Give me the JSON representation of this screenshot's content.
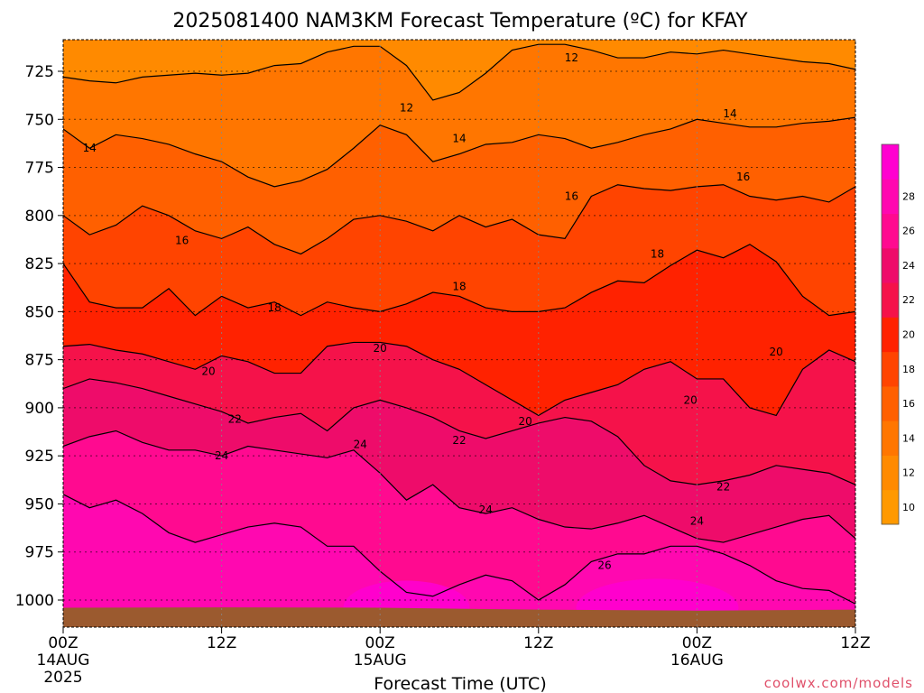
{
  "chart_data": {
    "type": "heatmap",
    "title": "2025081400 NAM3KM Forecast Temperature (ºC) for KFAY",
    "xlabel": "Forecast Time (UTC)",
    "ylabel": "",
    "units": "ºC",
    "x_ticks": [
      {
        "hour": 0,
        "label": "00Z",
        "sub1": "14AUG",
        "sub2": "2025"
      },
      {
        "hour": 12,
        "label": "12Z",
        "sub1": "",
        "sub2": ""
      },
      {
        "hour": 24,
        "label": "00Z",
        "sub1": "15AUG",
        "sub2": ""
      },
      {
        "hour": 36,
        "label": "12Z",
        "sub1": "",
        "sub2": ""
      },
      {
        "hour": 48,
        "label": "00Z",
        "sub1": "16AUG",
        "sub2": ""
      },
      {
        "hour": 60,
        "label": "12Z",
        "sub1": "",
        "sub2": ""
      }
    ],
    "xlim": [
      0,
      60
    ],
    "y_ticks": [
      725,
      750,
      775,
      800,
      825,
      850,
      875,
      900,
      925,
      950,
      975,
      1000
    ],
    "ylim": [
      1013,
      710
    ],
    "colorbar_levels": [
      10,
      12,
      14,
      16,
      18,
      20,
      22,
      24,
      26,
      28
    ],
    "contour_labels": [
      {
        "text": "12",
        "hour": 38.5,
        "p": 718
      },
      {
        "text": "12",
        "hour": 26,
        "p": 744
      },
      {
        "text": "14",
        "hour": 2,
        "p": 765
      },
      {
        "text": "14",
        "hour": 30,
        "p": 760
      },
      {
        "text": "14",
        "hour": 50.5,
        "p": 747
      },
      {
        "text": "16",
        "hour": 9,
        "p": 813
      },
      {
        "text": "16",
        "hour": 38.5,
        "p": 790
      },
      {
        "text": "16",
        "hour": 51.5,
        "p": 780
      },
      {
        "text": "18",
        "hour": 16,
        "p": 848
      },
      {
        "text": "18",
        "hour": 30,
        "p": 837
      },
      {
        "text": "18",
        "hour": 45,
        "p": 820
      },
      {
        "text": "20",
        "hour": 11,
        "p": 881
      },
      {
        "text": "20",
        "hour": 24,
        "p": 869
      },
      {
        "text": "20",
        "hour": 35,
        "p": 907
      },
      {
        "text": "20",
        "hour": 47.5,
        "p": 896
      },
      {
        "text": "20",
        "hour": 54,
        "p": 871
      },
      {
        "text": "22",
        "hour": 13,
        "p": 906
      },
      {
        "text": "22",
        "hour": 30,
        "p": 917
      },
      {
        "text": "22",
        "hour": 50,
        "p": 941
      },
      {
        "text": "24",
        "hour": 12,
        "p": 925
      },
      {
        "text": "24",
        "hour": 22.5,
        "p": 919
      },
      {
        "text": "24",
        "hour": 32,
        "p": 953
      },
      {
        "text": "24",
        "hour": 48,
        "p": 959
      },
      {
        "text": "26",
        "hour": 41,
        "p": 982
      }
    ],
    "isotherms": [
      {
        "level": 12,
        "hour": [
          0,
          2,
          4,
          6,
          8,
          10,
          12,
          14,
          16,
          18,
          20,
          22,
          24,
          26,
          28,
          30,
          32,
          34,
          36,
          38,
          40,
          42,
          44,
          46,
          48,
          50,
          52,
          54,
          56,
          58,
          60
        ],
        "p": [
          728,
          730,
          731,
          728,
          727,
          726,
          727,
          726,
          722,
          721,
          715,
          712,
          712,
          722,
          740,
          736,
          726,
          714,
          711,
          711,
          714,
          718,
          718,
          715,
          716,
          714,
          716,
          718,
          720,
          721,
          724
        ]
      },
      {
        "level": 14,
        "hour": [
          0,
          2,
          4,
          6,
          8,
          10,
          12,
          14,
          16,
          18,
          20,
          22,
          24,
          26,
          28,
          30,
          32,
          34,
          36,
          38,
          40,
          42,
          44,
          46,
          48,
          50,
          52,
          54,
          56,
          58,
          60
        ],
        "p": [
          755,
          765,
          758,
          760,
          763,
          768,
          772,
          780,
          785,
          782,
          776,
          765,
          753,
          758,
          772,
          768,
          763,
          762,
          758,
          760,
          765,
          762,
          758,
          755,
          750,
          752,
          754,
          754,
          752,
          751,
          749
        ]
      },
      {
        "level": 16,
        "hour": [
          0,
          2,
          4,
          6,
          8,
          10,
          12,
          14,
          16,
          18,
          20,
          22,
          24,
          26,
          28,
          30,
          32,
          34,
          36,
          38,
          40,
          42,
          44,
          46,
          48,
          50,
          52,
          54,
          56,
          58,
          60
        ],
        "p": [
          800,
          810,
          805,
          795,
          800,
          808,
          812,
          806,
          815,
          820,
          812,
          802,
          800,
          803,
          808,
          800,
          806,
          802,
          810,
          812,
          790,
          784,
          786,
          787,
          785,
          784,
          790,
          792,
          790,
          793,
          785
        ]
      },
      {
        "level": 18,
        "hour": [
          0,
          2,
          4,
          6,
          8,
          10,
          12,
          14,
          16,
          18,
          20,
          22,
          24,
          26,
          28,
          30,
          32,
          34,
          36,
          38,
          40,
          42,
          44,
          46,
          48,
          50,
          52,
          54,
          56,
          58,
          60
        ],
        "p": [
          825,
          845,
          848,
          848,
          838,
          852,
          842,
          848,
          845,
          852,
          845,
          848,
          850,
          846,
          840,
          842,
          848,
          850,
          850,
          848,
          840,
          834,
          835,
          826,
          818,
          822,
          815,
          824,
          842,
          852,
          850
        ]
      },
      {
        "level": 20,
        "hour": [
          0,
          2,
          4,
          6,
          8,
          10,
          12,
          14,
          16,
          18,
          20,
          22,
          24,
          26,
          28,
          30,
          32,
          34,
          36,
          38,
          40,
          42,
          44,
          46,
          48,
          50,
          52,
          54,
          56,
          58,
          60
        ],
        "p": [
          868,
          867,
          870,
          872,
          876,
          880,
          873,
          876,
          882,
          882,
          868,
          866,
          866,
          868,
          875,
          880,
          888,
          896,
          904,
          896,
          892,
          888,
          880,
          876,
          885,
          885,
          900,
          904,
          880,
          870,
          876
        ]
      },
      {
        "level": 22,
        "hour": [
          0,
          2,
          4,
          6,
          8,
          10,
          12,
          14,
          16,
          18,
          20,
          22,
          24,
          26,
          28,
          30,
          32,
          34,
          36,
          38,
          40,
          42,
          44,
          46,
          48,
          50,
          52,
          54,
          56,
          58,
          60
        ],
        "p": [
          890,
          885,
          887,
          890,
          894,
          898,
          902,
          908,
          905,
          903,
          912,
          900,
          896,
          900,
          905,
          912,
          916,
          912,
          908,
          905,
          907,
          915,
          930,
          938,
          940,
          938,
          935,
          930,
          932,
          934,
          940
        ]
      },
      {
        "level": 24,
        "hour": [
          0,
          2,
          4,
          6,
          8,
          10,
          12,
          14,
          16,
          18,
          20,
          22,
          24,
          26,
          28,
          30,
          32,
          34,
          36,
          38,
          40,
          42,
          44,
          46,
          48,
          50,
          52,
          54,
          56,
          58,
          60
        ],
        "p": [
          920,
          915,
          912,
          918,
          922,
          922,
          925,
          920,
          922,
          924,
          926,
          922,
          934,
          948,
          940,
          952,
          955,
          952,
          958,
          962,
          963,
          960,
          956,
          962,
          968,
          970,
          966,
          962,
          958,
          956,
          968
        ]
      },
      {
        "level": 26,
        "hour": [
          0,
          2,
          4,
          6,
          8,
          10,
          12,
          14,
          16,
          18,
          20,
          22,
          24,
          26,
          28,
          30,
          32,
          34,
          36,
          38,
          40,
          42,
          44,
          46,
          48,
          50,
          52,
          54,
          56,
          58,
          60
        ],
        "p": [
          945,
          952,
          948,
          955,
          965,
          970,
          966,
          962,
          960,
          962,
          972,
          972,
          985,
          996,
          998,
          992,
          987,
          990,
          1000,
          992,
          980,
          976,
          976,
          972,
          972,
          976,
          982,
          990,
          994,
          995,
          1002
        ]
      }
    ],
    "colors": {
      "ground": "#9b5a2f",
      "contour": "#000000",
      "scale": [
        "#ff9900",
        "#ff8a00",
        "#ff7600",
        "#ff6000",
        "#ff4400",
        "#ff2200",
        "#f5124a",
        "#ee0c6a",
        "#ff0a90",
        "#ff08b0",
        "#ff00d0"
      ]
    },
    "credit": "coolwx.com/models"
  }
}
